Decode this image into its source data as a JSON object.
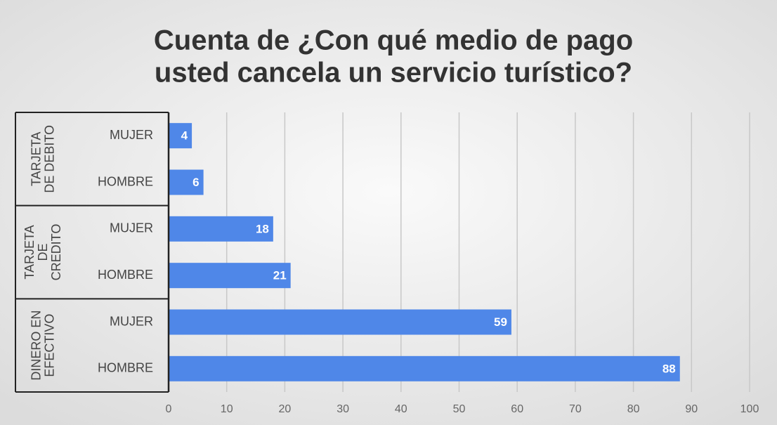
{
  "chart_data": {
    "type": "bar",
    "orientation": "horizontal",
    "title": [
      "Cuenta de ¿Con qué medio de pago",
      "usted cancela un servicio turístico?"
    ],
    "groups": [
      {
        "label": [
          "TARJETA",
          "DE DEBITO"
        ],
        "categories": [
          "MUJER",
          "HOMBRE"
        ],
        "values": [
          4,
          6
        ]
      },
      {
        "label": [
          "TARJETA",
          "DE",
          "CREDITO"
        ],
        "categories": [
          "MUJER",
          "HOMBRE"
        ],
        "values": [
          18,
          21
        ]
      },
      {
        "label": [
          "DINERO EN",
          "EFECTIVO"
        ],
        "categories": [
          "MUJER",
          "HOMBRE"
        ],
        "values": [
          59,
          88
        ]
      }
    ],
    "color": "#4f87e8",
    "xlim": [
      0,
      100
    ],
    "xticks": [
      0,
      10,
      20,
      30,
      40,
      50,
      60,
      70,
      80,
      90,
      100
    ],
    "grid": true
  }
}
